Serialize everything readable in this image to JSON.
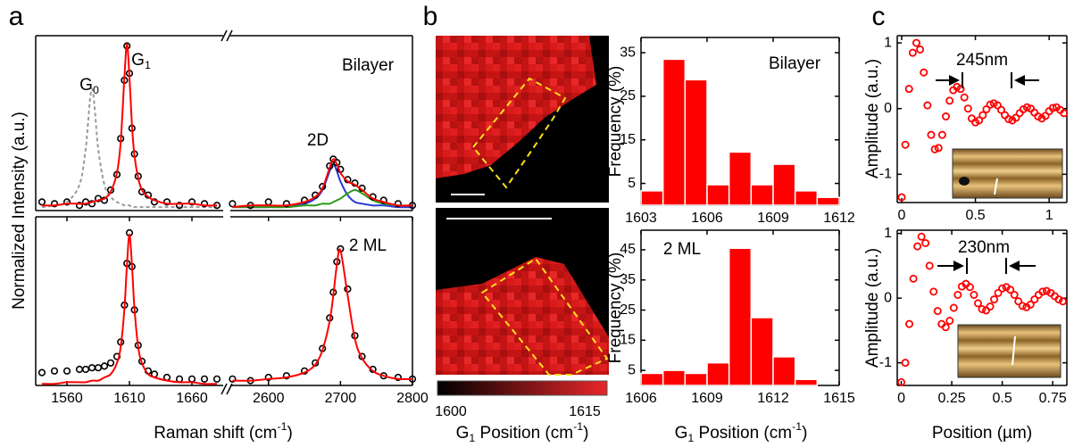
{
  "chart_data": [
    {
      "type": "line",
      "panel_label": "a",
      "ylabel": "Normalized Intensity (a.u.)",
      "annotations": [
        [
          {
            "text": "G"
          },
          {
            "sub": "0"
          }
        ],
        [
          {
            "text": "G"
          },
          {
            "sub": "1"
          }
        ]
      ],
      "x": [
        1540,
        1550,
        1560,
        1570,
        1575,
        1580,
        1585,
        1590,
        1595,
        1600,
        1603,
        1606,
        1608,
        1610,
        1612,
        1614,
        1617,
        1620,
        1625,
        1630,
        1640,
        1650,
        1660,
        1670,
        1680
      ],
      "xlim": [
        1535,
        1685
      ],
      "ylim": [
        0,
        1.02
      ],
      "series": [
        {
          "color": "#9a9a9a",
          "style": "dashed",
          "values": [
            0.02,
            0.03,
            0.05,
            0.15,
            0.36,
            0.71,
            0.36,
            0.15,
            0.08,
            0.05,
            0.04,
            0.03,
            0.03,
            0.03,
            0.02,
            0.02,
            0.02,
            0.02,
            0.02,
            0.02,
            0.02,
            0.02,
            0.02,
            0.02,
            0.02
          ]
        },
        {
          "color": "#000000",
          "style": "marker",
          "values": [
            0.05,
            0.04,
            0.05,
            0.03,
            0.05,
            0.04,
            0.07,
            0.06,
            0.12,
            0.21,
            0.42,
            0.76,
            0.96,
            0.8,
            0.48,
            0.33,
            0.2,
            0.11,
            0.09,
            0.05,
            0.05,
            0.03,
            0.05,
            0.04,
            0.03
          ]
        },
        {
          "color": "#ff0000",
          "style": "solid",
          "values": [
            0.03,
            0.03,
            0.04,
            0.04,
            0.04,
            0.05,
            0.06,
            0.07,
            0.11,
            0.22,
            0.4,
            0.78,
            0.97,
            0.78,
            0.5,
            0.32,
            0.19,
            0.12,
            0.08,
            0.06,
            0.04,
            0.04,
            0.04,
            0.03,
            0.03
          ]
        }
      ]
    },
    {
      "type": "line",
      "annotations": [
        "2D",
        "Bilayer"
      ],
      "x": [
        2550,
        2575,
        2600,
        2625,
        2650,
        2665,
        2675,
        2685,
        2690,
        2695,
        2700,
        2710,
        2720,
        2730,
        2745,
        2760,
        2780,
        2800
      ],
      "xlim": [
        2547,
        2800
      ],
      "ylim": [
        0,
        1.02
      ],
      "series": [
        {
          "color": "#2a3bd6",
          "style": "solid",
          "values": [
            0.02,
            0.02,
            0.02,
            0.03,
            0.04,
            0.07,
            0.12,
            0.23,
            0.27,
            0.23,
            0.17,
            0.09,
            0.05,
            0.04,
            0.03,
            0.03,
            0.02,
            0.02
          ]
        },
        {
          "color": "#2a9a1a",
          "style": "solid",
          "values": [
            0.02,
            0.02,
            0.02,
            0.02,
            0.03,
            0.03,
            0.04,
            0.04,
            0.05,
            0.06,
            0.07,
            0.1,
            0.12,
            0.1,
            0.06,
            0.04,
            0.03,
            0.03
          ]
        },
        {
          "color": "#000000",
          "style": "marker",
          "values": [
            0.04,
            0.03,
            0.05,
            0.04,
            0.06,
            0.09,
            0.14,
            0.26,
            0.3,
            0.28,
            0.24,
            0.18,
            0.16,
            0.13,
            0.08,
            0.06,
            0.04,
            0.03
          ]
        },
        {
          "color": "#ff0000",
          "style": "solid",
          "values": [
            0.02,
            0.03,
            0.03,
            0.03,
            0.05,
            0.08,
            0.13,
            0.25,
            0.3,
            0.27,
            0.22,
            0.17,
            0.15,
            0.12,
            0.07,
            0.05,
            0.03,
            0.03
          ]
        }
      ]
    },
    {
      "type": "line",
      "xlabel": [
        {
          "text": "Raman shift (cm"
        },
        {
          "sup": "-1"
        },
        {
          "text": ")"
        }
      ],
      "x": [
        1540,
        1550,
        1560,
        1570,
        1575,
        1580,
        1585,
        1590,
        1595,
        1600,
        1603,
        1606,
        1608,
        1610,
        1612,
        1614,
        1617,
        1620,
        1625,
        1630,
        1640,
        1650,
        1660,
        1670,
        1680
      ],
      "xlim": [
        1535,
        1685
      ],
      "xticks": [
        1560,
        1610,
        1660
      ],
      "ylim": [
        0,
        1.05
      ],
      "series": [
        {
          "color": "#000000",
          "style": "marker",
          "values": [
            0.08,
            0.09,
            0.09,
            0.1,
            0.1,
            0.11,
            0.11,
            0.12,
            0.14,
            0.18,
            0.27,
            0.5,
            0.76,
            0.95,
            0.74,
            0.47,
            0.25,
            0.15,
            0.09,
            0.07,
            0.05,
            0.04,
            0.04,
            0.04,
            0.04
          ]
        },
        {
          "color": "#ff0000",
          "style": "solid",
          "values": [
            0.01,
            0.01,
            0.02,
            0.02,
            0.02,
            0.03,
            0.03,
            0.05,
            0.07,
            0.14,
            0.24,
            0.48,
            0.75,
            0.94,
            0.75,
            0.48,
            0.24,
            0.14,
            0.07,
            0.05,
            0.03,
            0.02,
            0.02,
            0.01,
            0.01
          ]
        }
      ]
    },
    {
      "type": "line",
      "annotations": [
        "2 ML"
      ],
      "x": [
        2550,
        2575,
        2600,
        2625,
        2650,
        2665,
        2675,
        2685,
        2690,
        2695,
        2700,
        2710,
        2720,
        2730,
        2745,
        2760,
        2780,
        2800
      ],
      "xlim": [
        2547,
        2800
      ],
      "xticks": [
        2600,
        2700,
        2800
      ],
      "ylim": [
        0,
        1.05
      ],
      "series": [
        {
          "color": "#000000",
          "style": "marker",
          "values": [
            0.04,
            0.03,
            0.05,
            0.06,
            0.09,
            0.14,
            0.23,
            0.42,
            0.58,
            0.77,
            0.85,
            0.6,
            0.31,
            0.18,
            0.1,
            0.06,
            0.05,
            0.04
          ]
        },
        {
          "color": "#ff0000",
          "style": "solid",
          "values": [
            0.03,
            0.03,
            0.04,
            0.05,
            0.08,
            0.13,
            0.22,
            0.4,
            0.56,
            0.75,
            0.84,
            0.56,
            0.29,
            0.17,
            0.09,
            0.06,
            0.04,
            0.04
          ]
        }
      ]
    },
    {
      "type": "colorbar",
      "panel_label": "b",
      "colors": [
        "#000000",
        "#e8262a"
      ],
      "xlim": [
        1598.5,
        1617.5
      ],
      "xticks": [
        1600,
        1615
      ],
      "xlabel": [
        {
          "text": "G"
        },
        {
          "sub": "1"
        },
        {
          "text": " Position (cm"
        },
        {
          "sup": "-1"
        },
        {
          "text": ")"
        }
      ]
    },
    {
      "type": "histogram",
      "color": "#ff0000",
      "ylabel": "Frequency (%)",
      "annotations": [
        "Bilayer"
      ],
      "bins": [
        1603,
        1604,
        1605,
        1606,
        1607,
        1608,
        1609,
        1610,
        1611,
        1612
      ],
      "values": [
        3.3,
        33.5,
        28.8,
        4.7,
        12.2,
        4.7,
        9.4,
        3.3,
        1.8
      ],
      "xlim": [
        1603,
        1612
      ],
      "xticks": [
        1603,
        1606,
        1609,
        1612
      ],
      "ylim": [
        0,
        38.5
      ],
      "yticks": [
        5,
        15,
        25,
        35
      ]
    },
    {
      "type": "histogram",
      "color": "#ff0000",
      "ylabel": "Frequency (%)",
      "annotations": [
        "2 ML"
      ],
      "xlabel": [
        {
          "text": "G"
        },
        {
          "sub": "1"
        },
        {
          "text": " Position (cm"
        },
        {
          "sup": "-1"
        },
        {
          "text": ")"
        }
      ],
      "bins": [
        1606,
        1607,
        1608,
        1609,
        1610,
        1611,
        1612,
        1613,
        1614,
        1615
      ],
      "values": [
        4,
        5,
        4,
        7.5,
        45.5,
        22.5,
        9.5,
        2,
        0
      ],
      "xlim": [
        1606,
        1615
      ],
      "xticks": [
        1606,
        1609,
        1612,
        1615
      ],
      "ylim": [
        0,
        51.5
      ],
      "yticks": [
        5,
        15,
        25,
        35,
        45
      ]
    },
    {
      "type": "scatter",
      "panel_label": "c",
      "color": "#ff0000",
      "ylabel": "Amplitude (a.u.)",
      "annotations": [
        "245nm"
      ],
      "x": [
        0,
        0.025,
        0.05,
        0.075,
        0.1,
        0.125,
        0.15,
        0.175,
        0.2,
        0.225,
        0.25,
        0.275,
        0.3,
        0.325,
        0.35,
        0.375,
        0.4,
        0.425,
        0.45,
        0.475,
        0.5,
        0.525,
        0.55,
        0.575,
        0.6,
        0.625,
        0.65,
        0.675,
        0.7,
        0.725,
        0.75,
        0.775,
        0.8,
        0.825,
        0.85,
        0.875,
        0.9,
        0.925,
        0.95,
        0.975,
        1,
        1.025,
        1.05,
        1.075,
        1.1
      ],
      "values": [
        -1.35,
        -0.55,
        0.3,
        0.85,
        1.0,
        0.9,
        0.55,
        0.05,
        -0.4,
        -0.62,
        -0.6,
        -0.4,
        -0.12,
        0.12,
        0.28,
        0.33,
        0.3,
        0.17,
        0.0,
        -0.15,
        -0.21,
        -0.18,
        -0.1,
        -0.01,
        0.06,
        0.08,
        0.05,
        -0.02,
        -0.1,
        -0.16,
        -0.18,
        -0.14,
        -0.07,
        -0.01,
        0.02,
        0.0,
        -0.06,
        -0.12,
        -0.15,
        -0.11,
        -0.04,
        0.01,
        0.02,
        -0.02,
        -0.07
      ],
      "xlim": [
        -0.03,
        1.12
      ],
      "xticks": [
        0,
        0.5,
        1
      ],
      "ylim": [
        -1.43,
        1.11
      ],
      "yticks": [
        -1,
        0,
        1
      ]
    },
    {
      "type": "scatter",
      "color": "#ff0000",
      "ylabel": "Amplitude (a.u.)",
      "xlabel": "Position (µm)",
      "annotations": [
        "230nm"
      ],
      "x": [
        0,
        0.02,
        0.04,
        0.06,
        0.08,
        0.1,
        0.12,
        0.14,
        0.16,
        0.18,
        0.2,
        0.22,
        0.24,
        0.26,
        0.28,
        0.3,
        0.32,
        0.34,
        0.36,
        0.38,
        0.4,
        0.42,
        0.44,
        0.46,
        0.48,
        0.5,
        0.52,
        0.54,
        0.56,
        0.58,
        0.6,
        0.62,
        0.64,
        0.66,
        0.68,
        0.7,
        0.72,
        0.74,
        0.76,
        0.78,
        0.8
      ],
      "values": [
        -1.3,
        -1.0,
        -0.4,
        0.3,
        0.8,
        0.95,
        0.85,
        0.5,
        0.1,
        -0.2,
        -0.4,
        -0.45,
        -0.35,
        -0.15,
        0.05,
        0.18,
        0.22,
        0.17,
        0.05,
        -0.08,
        -0.17,
        -0.19,
        -0.13,
        -0.02,
        0.08,
        0.15,
        0.17,
        0.13,
        0.05,
        -0.05,
        -0.12,
        -0.14,
        -0.1,
        -0.02,
        0.05,
        0.1,
        0.11,
        0.08,
        0.03,
        -0.02,
        -0.05
      ],
      "xlim": [
        -0.02,
        0.82
      ],
      "xticks": [
        0,
        0.25,
        0.5,
        0.75
      ],
      "ylim": [
        -1.35,
        1.05
      ],
      "yticks": [
        -1,
        0,
        1
      ]
    }
  ]
}
